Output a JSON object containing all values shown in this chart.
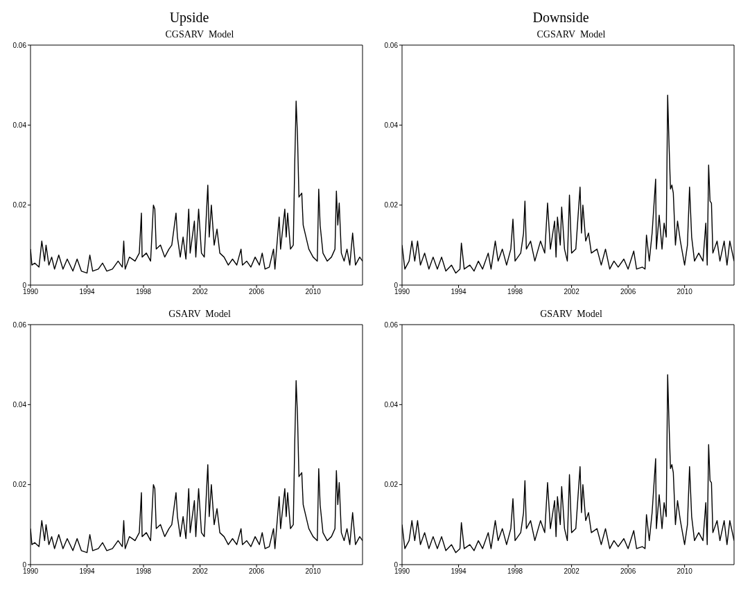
{
  "chart_data": [
    {
      "type": "line",
      "title": "Upside",
      "subtitle": "CGSARV  Model",
      "xlim": [
        1990,
        2013.5
      ],
      "xticks": [
        1990,
        1994,
        1998,
        2002,
        2006,
        2010
      ],
      "ylim": [
        0,
        0.06
      ],
      "yticks": [
        0,
        0.02,
        0.04,
        0.06
      ],
      "series": [
        {
          "color": "#000000",
          "x": [
            1990.0,
            1990.1,
            1990.3,
            1990.6,
            1990.8,
            1991.0,
            1991.1,
            1991.3,
            1991.5,
            1991.7,
            1992.0,
            1992.3,
            1992.6,
            1993.0,
            1993.3,
            1993.6,
            1994.0,
            1994.2,
            1994.4,
            1994.8,
            1995.1,
            1995.4,
            1995.8,
            1996.2,
            1996.5,
            1996.6,
            1996.7,
            1997.0,
            1997.4,
            1997.7,
            1997.85,
            1997.9,
            1998.2,
            1998.5,
            1998.7,
            1998.8,
            1998.9,
            1999.2,
            1999.5,
            1999.8,
            2000.0,
            2000.3,
            2000.4,
            2000.6,
            2000.8,
            2001.0,
            2001.2,
            2001.3,
            2001.6,
            2001.7,
            2001.9,
            2002.1,
            2002.3,
            2002.55,
            2002.65,
            2002.8,
            2003.0,
            2003.2,
            2003.4,
            2003.7,
            2004.0,
            2004.3,
            2004.6,
            2004.9,
            2005.0,
            2005.3,
            2005.6,
            2005.9,
            2006.2,
            2006.4,
            2006.6,
            2006.9,
            2007.2,
            2007.3,
            2007.6,
            2007.7,
            2008.0,
            2008.1,
            2008.2,
            2008.4,
            2008.6,
            2008.7,
            2008.8,
            2008.9,
            2009.0,
            2009.2,
            2009.3,
            2009.5,
            2009.7,
            2010.0,
            2010.3,
            2010.4,
            2010.5,
            2010.7,
            2011.0,
            2011.3,
            2011.55,
            2011.65,
            2011.75,
            2011.85,
            2012.0,
            2012.2,
            2012.4,
            2012.6,
            2012.8,
            2013.0,
            2013.3,
            2013.5
          ],
          "values": [
            0.009,
            0.005,
            0.0055,
            0.0045,
            0.011,
            0.006,
            0.01,
            0.005,
            0.007,
            0.004,
            0.0075,
            0.004,
            0.0065,
            0.0035,
            0.0065,
            0.0035,
            0.003,
            0.0075,
            0.0035,
            0.004,
            0.0055,
            0.0035,
            0.004,
            0.006,
            0.0045,
            0.011,
            0.004,
            0.007,
            0.006,
            0.008,
            0.018,
            0.007,
            0.008,
            0.006,
            0.02,
            0.019,
            0.009,
            0.01,
            0.007,
            0.009,
            0.01,
            0.018,
            0.012,
            0.007,
            0.012,
            0.0065,
            0.019,
            0.008,
            0.016,
            0.007,
            0.019,
            0.008,
            0.007,
            0.025,
            0.012,
            0.02,
            0.01,
            0.014,
            0.008,
            0.007,
            0.005,
            0.0065,
            0.005,
            0.009,
            0.005,
            0.006,
            0.0045,
            0.007,
            0.005,
            0.008,
            0.004,
            0.0045,
            0.009,
            0.004,
            0.017,
            0.009,
            0.019,
            0.012,
            0.018,
            0.009,
            0.01,
            0.03,
            0.046,
            0.037,
            0.022,
            0.023,
            0.015,
            0.012,
            0.009,
            0.007,
            0.006,
            0.024,
            0.015,
            0.008,
            0.006,
            0.007,
            0.009,
            0.0235,
            0.015,
            0.0205,
            0.008,
            0.006,
            0.009,
            0.005,
            0.013,
            0.005,
            0.007,
            0.006
          ]
        }
      ]
    },
    {
      "type": "line",
      "title": "Downside",
      "subtitle": "CGSARV  Model",
      "xlim": [
        1990,
        2013.5
      ],
      "xticks": [
        1990,
        1994,
        1998,
        2002,
        2006,
        2010
      ],
      "ylim": [
        0,
        0.06
      ],
      "yticks": [
        0,
        0.02,
        0.04,
        0.06
      ],
      "series": [
        {
          "color": "#000000",
          "x": [
            1990.0,
            1990.2,
            1990.5,
            1990.7,
            1990.9,
            1991.1,
            1991.3,
            1991.6,
            1991.9,
            1992.2,
            1992.5,
            1992.8,
            1993.1,
            1993.5,
            1993.8,
            1994.1,
            1994.2,
            1994.4,
            1994.8,
            1995.1,
            1995.4,
            1995.7,
            1996.1,
            1996.3,
            1996.6,
            1996.8,
            1997.1,
            1997.4,
            1997.7,
            1997.85,
            1998.0,
            1998.4,
            1998.6,
            1998.7,
            1998.8,
            1999.1,
            1999.4,
            1999.8,
            2000.1,
            2000.3,
            2000.5,
            2000.8,
            2000.9,
            2001.0,
            2001.2,
            2001.3,
            2001.5,
            2001.7,
            2001.85,
            2002.0,
            2002.3,
            2002.6,
            2002.7,
            2002.8,
            2003.0,
            2003.2,
            2003.4,
            2003.8,
            2004.1,
            2004.4,
            2004.7,
            2005.0,
            2005.3,
            2005.7,
            2006.0,
            2006.4,
            2006.6,
            2007.0,
            2007.2,
            2007.3,
            2007.5,
            2007.7,
            2007.95,
            2008.0,
            2008.2,
            2008.4,
            2008.55,
            2008.7,
            2008.8,
            2008.9,
            2009.0,
            2009.1,
            2009.2,
            2009.35,
            2009.5,
            2009.7,
            2010.0,
            2010.2,
            2010.35,
            2010.5,
            2010.7,
            2011.0,
            2011.3,
            2011.5,
            2011.6,
            2011.7,
            2011.8,
            2011.9,
            2012.0,
            2012.3,
            2012.5,
            2012.8,
            2013.0,
            2013.2,
            2013.5
          ],
          "values": [
            0.01,
            0.004,
            0.006,
            0.011,
            0.006,
            0.011,
            0.005,
            0.008,
            0.004,
            0.007,
            0.004,
            0.007,
            0.0035,
            0.005,
            0.003,
            0.004,
            0.0105,
            0.004,
            0.005,
            0.0035,
            0.006,
            0.004,
            0.008,
            0.004,
            0.011,
            0.006,
            0.009,
            0.005,
            0.009,
            0.0165,
            0.006,
            0.008,
            0.013,
            0.021,
            0.009,
            0.011,
            0.006,
            0.011,
            0.008,
            0.0205,
            0.009,
            0.016,
            0.007,
            0.017,
            0.01,
            0.0195,
            0.009,
            0.006,
            0.0225,
            0.008,
            0.009,
            0.0245,
            0.013,
            0.02,
            0.011,
            0.013,
            0.008,
            0.009,
            0.005,
            0.009,
            0.004,
            0.006,
            0.0045,
            0.0065,
            0.004,
            0.0085,
            0.004,
            0.0045,
            0.004,
            0.0125,
            0.006,
            0.013,
            0.0265,
            0.009,
            0.0175,
            0.009,
            0.0155,
            0.012,
            0.0475,
            0.035,
            0.024,
            0.025,
            0.023,
            0.01,
            0.016,
            0.011,
            0.005,
            0.01,
            0.0245,
            0.012,
            0.006,
            0.008,
            0.006,
            0.0155,
            0.005,
            0.03,
            0.021,
            0.0205,
            0.008,
            0.011,
            0.006,
            0.011,
            0.005,
            0.011,
            0.006
          ]
        }
      ]
    },
    {
      "type": "line",
      "subtitle": "GSARV  Model",
      "xlim": [
        1990,
        2013.5
      ],
      "xticks": [
        1990,
        1994,
        1998,
        2002,
        2006,
        2010
      ],
      "ylim": [
        0,
        0.06
      ],
      "yticks": [
        0,
        0.02,
        0.04,
        0.06
      ],
      "series": [
        {
          "color": "#000000",
          "x": [
            1990.0,
            1990.1,
            1990.3,
            1990.6,
            1990.8,
            1991.0,
            1991.1,
            1991.3,
            1991.5,
            1991.7,
            1992.0,
            1992.3,
            1992.6,
            1993.0,
            1993.3,
            1993.6,
            1994.0,
            1994.2,
            1994.4,
            1994.8,
            1995.1,
            1995.4,
            1995.8,
            1996.2,
            1996.5,
            1996.6,
            1996.7,
            1997.0,
            1997.4,
            1997.7,
            1997.85,
            1997.9,
            1998.2,
            1998.5,
            1998.7,
            1998.8,
            1998.9,
            1999.2,
            1999.5,
            1999.8,
            2000.0,
            2000.3,
            2000.4,
            2000.6,
            2000.8,
            2001.0,
            2001.2,
            2001.3,
            2001.6,
            2001.7,
            2001.9,
            2002.1,
            2002.3,
            2002.55,
            2002.65,
            2002.8,
            2003.0,
            2003.2,
            2003.4,
            2003.7,
            2004.0,
            2004.3,
            2004.6,
            2004.9,
            2005.0,
            2005.3,
            2005.6,
            2005.9,
            2006.2,
            2006.4,
            2006.6,
            2006.9,
            2007.2,
            2007.3,
            2007.6,
            2007.7,
            2008.0,
            2008.1,
            2008.2,
            2008.4,
            2008.6,
            2008.7,
            2008.8,
            2008.9,
            2009.0,
            2009.2,
            2009.3,
            2009.5,
            2009.7,
            2010.0,
            2010.3,
            2010.4,
            2010.5,
            2010.7,
            2011.0,
            2011.3,
            2011.55,
            2011.65,
            2011.75,
            2011.85,
            2012.0,
            2012.2,
            2012.4,
            2012.6,
            2012.8,
            2013.0,
            2013.3,
            2013.5
          ],
          "values": [
            0.009,
            0.005,
            0.0055,
            0.0045,
            0.011,
            0.006,
            0.01,
            0.005,
            0.007,
            0.004,
            0.0075,
            0.004,
            0.0065,
            0.0035,
            0.0065,
            0.0035,
            0.003,
            0.0075,
            0.0035,
            0.004,
            0.0055,
            0.0035,
            0.004,
            0.006,
            0.0045,
            0.011,
            0.004,
            0.007,
            0.006,
            0.008,
            0.018,
            0.007,
            0.008,
            0.006,
            0.02,
            0.019,
            0.009,
            0.01,
            0.007,
            0.009,
            0.01,
            0.018,
            0.012,
            0.007,
            0.012,
            0.0065,
            0.019,
            0.008,
            0.016,
            0.007,
            0.019,
            0.008,
            0.007,
            0.025,
            0.012,
            0.02,
            0.01,
            0.014,
            0.008,
            0.007,
            0.005,
            0.0065,
            0.005,
            0.009,
            0.005,
            0.006,
            0.0045,
            0.007,
            0.005,
            0.008,
            0.004,
            0.0045,
            0.009,
            0.004,
            0.017,
            0.009,
            0.019,
            0.012,
            0.018,
            0.009,
            0.01,
            0.03,
            0.046,
            0.037,
            0.022,
            0.023,
            0.015,
            0.012,
            0.009,
            0.007,
            0.006,
            0.024,
            0.015,
            0.008,
            0.006,
            0.007,
            0.009,
            0.0235,
            0.015,
            0.0205,
            0.008,
            0.006,
            0.009,
            0.005,
            0.013,
            0.005,
            0.007,
            0.006
          ]
        }
      ]
    },
    {
      "type": "line",
      "subtitle": "GSARV  Model",
      "xlim": [
        1990,
        2013.5
      ],
      "xticks": [
        1990,
        1994,
        1998,
        2002,
        2006,
        2010
      ],
      "ylim": [
        0,
        0.06
      ],
      "yticks": [
        0,
        0.02,
        0.04,
        0.06
      ],
      "series": [
        {
          "color": "#000000",
          "x": [
            1990.0,
            1990.2,
            1990.5,
            1990.7,
            1990.9,
            1991.1,
            1991.3,
            1991.6,
            1991.9,
            1992.2,
            1992.5,
            1992.8,
            1993.1,
            1993.5,
            1993.8,
            1994.1,
            1994.2,
            1994.4,
            1994.8,
            1995.1,
            1995.4,
            1995.7,
            1996.1,
            1996.3,
            1996.6,
            1996.8,
            1997.1,
            1997.4,
            1997.7,
            1997.85,
            1998.0,
            1998.4,
            1998.6,
            1998.7,
            1998.8,
            1999.1,
            1999.4,
            1999.8,
            2000.1,
            2000.3,
            2000.5,
            2000.8,
            2000.9,
            2001.0,
            2001.2,
            2001.3,
            2001.5,
            2001.7,
            2001.85,
            2002.0,
            2002.3,
            2002.6,
            2002.7,
            2002.8,
            2003.0,
            2003.2,
            2003.4,
            2003.8,
            2004.1,
            2004.4,
            2004.7,
            2005.0,
            2005.3,
            2005.7,
            2006.0,
            2006.4,
            2006.6,
            2007.0,
            2007.2,
            2007.3,
            2007.5,
            2007.7,
            2007.95,
            2008.0,
            2008.2,
            2008.4,
            2008.55,
            2008.7,
            2008.8,
            2008.9,
            2009.0,
            2009.1,
            2009.2,
            2009.35,
            2009.5,
            2009.7,
            2010.0,
            2010.2,
            2010.35,
            2010.5,
            2010.7,
            2011.0,
            2011.3,
            2011.5,
            2011.6,
            2011.7,
            2011.8,
            2011.9,
            2012.0,
            2012.3,
            2012.5,
            2012.8,
            2013.0,
            2013.2,
            2013.5
          ],
          "values": [
            0.01,
            0.004,
            0.006,
            0.011,
            0.006,
            0.011,
            0.005,
            0.008,
            0.004,
            0.007,
            0.004,
            0.007,
            0.0035,
            0.005,
            0.003,
            0.004,
            0.0105,
            0.004,
            0.005,
            0.0035,
            0.006,
            0.004,
            0.008,
            0.004,
            0.011,
            0.006,
            0.009,
            0.005,
            0.009,
            0.0165,
            0.006,
            0.008,
            0.013,
            0.021,
            0.009,
            0.011,
            0.006,
            0.011,
            0.008,
            0.0205,
            0.009,
            0.016,
            0.007,
            0.017,
            0.01,
            0.0195,
            0.009,
            0.006,
            0.0225,
            0.008,
            0.009,
            0.0245,
            0.013,
            0.02,
            0.011,
            0.013,
            0.008,
            0.009,
            0.005,
            0.009,
            0.004,
            0.006,
            0.0045,
            0.0065,
            0.004,
            0.0085,
            0.004,
            0.0045,
            0.004,
            0.0125,
            0.006,
            0.013,
            0.0265,
            0.009,
            0.0175,
            0.009,
            0.0155,
            0.012,
            0.0475,
            0.035,
            0.024,
            0.025,
            0.023,
            0.01,
            0.016,
            0.011,
            0.005,
            0.01,
            0.0245,
            0.012,
            0.006,
            0.008,
            0.006,
            0.0155,
            0.005,
            0.03,
            0.021,
            0.0205,
            0.008,
            0.011,
            0.006,
            0.011,
            0.005,
            0.011,
            0.006
          ]
        }
      ]
    }
  ]
}
